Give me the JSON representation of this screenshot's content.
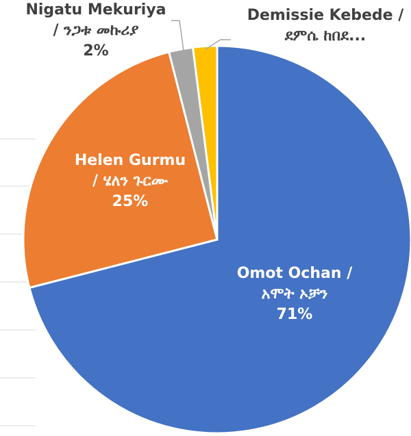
{
  "chart_data": {
    "type": "pie",
    "categories": [
      "Omot Ochan / አሞት ኦቻን",
      "Helen Gurmu / ሄለን ጉርሙ",
      "Nigatu Mekuriya / ንጋቱ መኩሪያ",
      "Demissie Kebede / ደምሴ ከበደ..."
    ],
    "values": [
      71,
      25,
      2,
      2
    ],
    "value_labels": [
      "71%",
      "25%",
      "2%",
      null
    ],
    "colors": [
      "#4472c4",
      "#ed7d31",
      "#a5a5a5",
      "#ffc000"
    ]
  }
}
